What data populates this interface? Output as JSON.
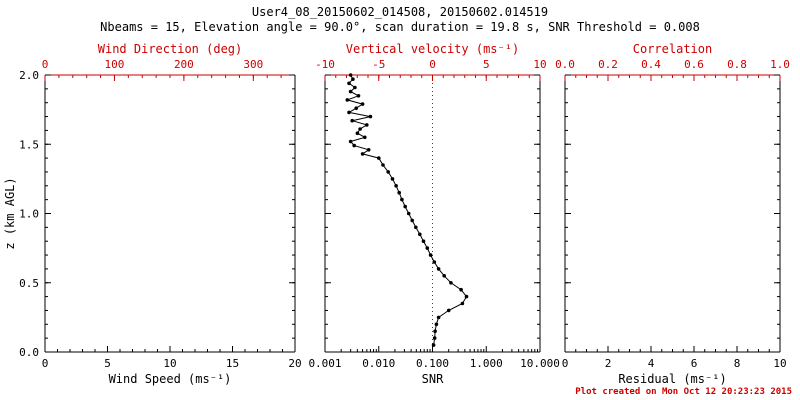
{
  "header": {
    "title": "User4_08_20150602_014508, 20150602.014519",
    "subtitle": "Nbeams = 15, Elevation angle = 90.0°, scan duration = 19.8 s, SNR Threshold = 0.008"
  },
  "footer": {
    "created": "Plot created on Mon Oct 12 20:23:23 2015"
  },
  "colors": {
    "primary_axis": "#000000",
    "secondary_axis": "#cc0000",
    "data_points": "#000000",
    "reference_line": "#cc0000",
    "background": "#ffffff"
  },
  "chart_data": [
    {
      "type": "scatter",
      "panel": "wind-speed",
      "xlabel": "Wind Speed (ms⁻¹)",
      "xlim": [
        0,
        20
      ],
      "xticks": [
        0,
        5,
        10,
        15,
        20
      ],
      "xtick_labels": [
        "0",
        "5",
        "10",
        "15",
        "20"
      ],
      "top_axis": {
        "label": "Wind Direction (deg)",
        "lim": [
          0,
          360
        ],
        "ticks": [
          0,
          100,
          200,
          300
        ],
        "tick_labels": [
          "0",
          "100",
          "200",
          "300"
        ]
      },
      "ylabel": "z (km AGL)",
      "ylim": [
        0,
        2
      ],
      "yticks": [
        0,
        0.5,
        1,
        1.5,
        2
      ],
      "ytick_labels": [
        "0.0",
        "0.5",
        "1.0",
        "1.5",
        "2.0"
      ],
      "series": []
    },
    {
      "type": "scatter",
      "panel": "snr",
      "xlabel": "SNR",
      "xscale": "log",
      "xlim": [
        0.001,
        10
      ],
      "xticks": [
        0.001,
        0.01,
        0.1,
        1,
        10
      ],
      "xtick_labels": [
        "0.001",
        "0.010",
        "0.100",
        "1.000",
        "10.000"
      ],
      "top_axis": {
        "label": "Vertical velocity (ms⁻¹)",
        "lim": [
          -10,
          10
        ],
        "ticks": [
          -10,
          -5,
          0,
          5,
          10
        ],
        "tick_labels": [
          "-10",
          "-5",
          "0",
          "5",
          "10"
        ]
      },
      "ylim": [
        0,
        2
      ],
      "yticks": [
        0,
        0.5,
        1,
        1.5,
        2
      ],
      "reference_line": {
        "x": 0.1,
        "style": "dotted"
      },
      "series": [
        {
          "name": "snr-profile",
          "marker": "dot",
          "points_xy": [
            [
              0.105,
              0.05
            ],
            [
              0.11,
              0.1
            ],
            [
              0.112,
              0.15
            ],
            [
              0.118,
              0.2
            ],
            [
              0.13,
              0.25
            ],
            [
              0.2,
              0.3
            ],
            [
              0.36,
              0.35
            ],
            [
              0.43,
              0.4
            ],
            [
              0.34,
              0.45
            ],
            [
              0.22,
              0.5
            ],
            [
              0.165,
              0.55
            ],
            [
              0.13,
              0.6
            ],
            [
              0.108,
              0.65
            ],
            [
              0.092,
              0.7
            ],
            [
              0.08,
              0.75
            ],
            [
              0.068,
              0.8
            ],
            [
              0.058,
              0.85
            ],
            [
              0.049,
              0.9
            ],
            [
              0.042,
              0.95
            ],
            [
              0.036,
              1.0
            ],
            [
              0.031,
              1.05
            ],
            [
              0.027,
              1.1
            ],
            [
              0.024,
              1.15
            ],
            [
              0.021,
              1.2
            ],
            [
              0.018,
              1.25
            ],
            [
              0.015,
              1.3
            ],
            [
              0.012,
              1.35
            ],
            [
              0.01,
              1.4
            ],
            [
              0.005,
              1.43
            ],
            [
              0.0065,
              1.46
            ],
            [
              0.0035,
              1.49
            ],
            [
              0.003,
              1.52
            ],
            [
              0.0055,
              1.55
            ],
            [
              0.004,
              1.58
            ],
            [
              0.0045,
              1.61
            ],
            [
              0.006,
              1.64
            ],
            [
              0.0032,
              1.67
            ],
            [
              0.007,
              1.7
            ],
            [
              0.0028,
              1.73
            ],
            [
              0.0038,
              1.76
            ],
            [
              0.005,
              1.79
            ],
            [
              0.0026,
              1.82
            ],
            [
              0.0042,
              1.85
            ],
            [
              0.003,
              1.88
            ],
            [
              0.0036,
              1.91
            ],
            [
              0.0028,
              1.94
            ],
            [
              0.0033,
              1.97
            ],
            [
              0.003,
              2.0
            ]
          ]
        }
      ]
    },
    {
      "type": "scatter",
      "panel": "residual",
      "xlabel": "Residual (ms⁻¹)",
      "xlim": [
        0,
        10
      ],
      "xticks": [
        0,
        2,
        4,
        6,
        8,
        10
      ],
      "xtick_labels": [
        "0",
        "2",
        "4",
        "6",
        "8",
        "10"
      ],
      "top_axis": {
        "label": "Correlation",
        "lim": [
          0,
          1
        ],
        "ticks": [
          0,
          0.2,
          0.4,
          0.6,
          0.8,
          1
        ],
        "tick_labels": [
          "0.0",
          "0.2",
          "0.4",
          "0.6",
          "0.8",
          "1.0"
        ]
      },
      "ylim": [
        0,
        2
      ],
      "yticks": [
        0,
        0.5,
        1,
        1.5,
        2
      ],
      "series": []
    }
  ]
}
